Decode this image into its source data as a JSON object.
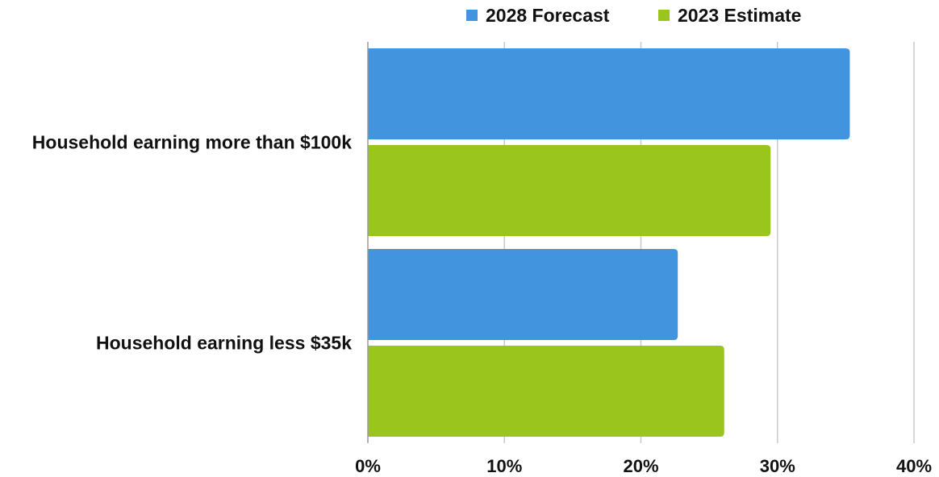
{
  "chart_data": {
    "type": "bar",
    "orientation": "horizontal",
    "title": "",
    "xlabel": "",
    "ylabel": "",
    "categories": [
      "Household earning more than $100k",
      "Household earning less $35k"
    ],
    "series": [
      {
        "name": "2028 Forecast",
        "color": "#4394DE",
        "values": [
          35.3,
          22.7
        ]
      },
      {
        "name": "2023 Estimate",
        "color": "#99C51C",
        "values": [
          29.5,
          26.1
        ]
      }
    ],
    "xlim": [
      0,
      40
    ],
    "x_ticks": [
      0,
      10,
      20,
      30,
      40
    ],
    "x_tick_labels": [
      "0%",
      "10%",
      "20%",
      "30%",
      "40%"
    ],
    "grid": "vertical",
    "legend_position": "top"
  }
}
